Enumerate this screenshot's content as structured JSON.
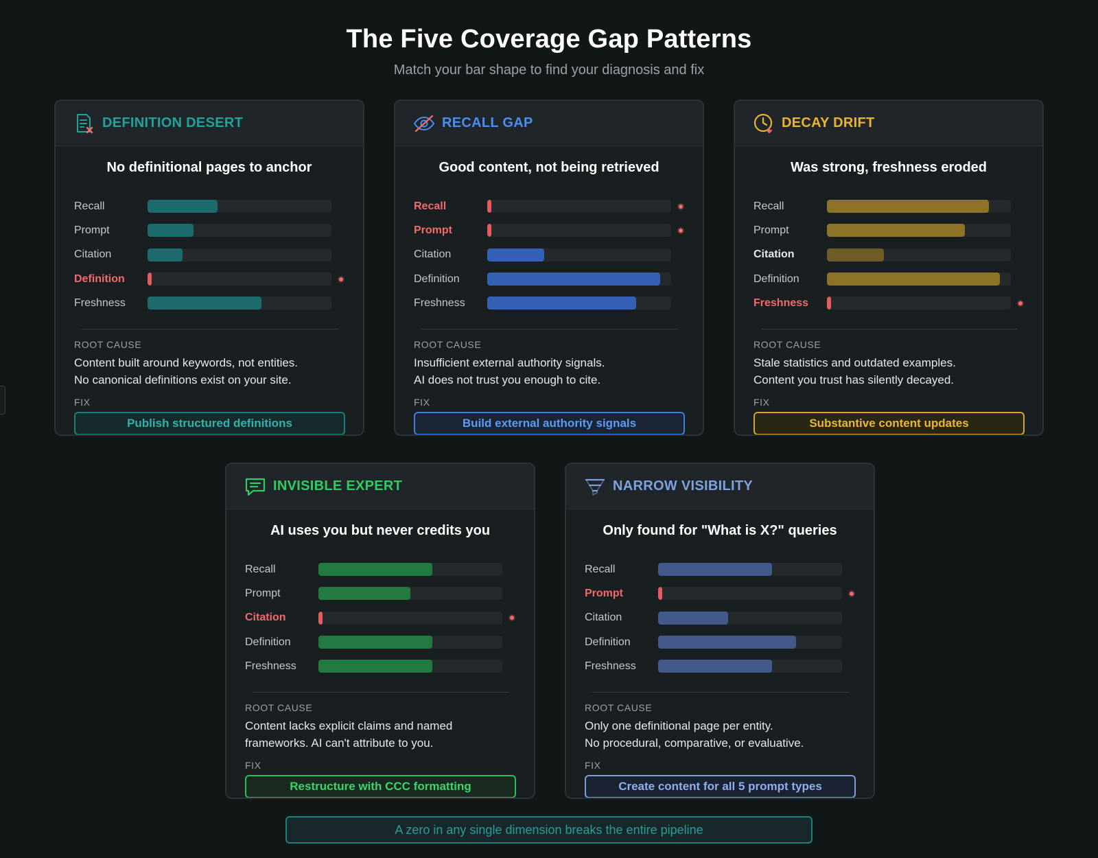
{
  "header": {
    "title": "The Five Coverage Gap Patterns",
    "subtitle": "Match your bar shape to find your diagnosis and fix"
  },
  "labels": {
    "root_cause": "ROOT CAUSE",
    "fix": "FIX"
  },
  "patterns": [
    {
      "title": "DEFINITION DESERT",
      "icon": "document-x-icon",
      "accent": "#1fa39c",
      "bar_color": "#1d6b6c",
      "headline": "No definitional pages to anchor",
      "bars": [
        {
          "label": "Recall",
          "value": 0.38,
          "zero": false
        },
        {
          "label": "Prompt",
          "value": 0.25,
          "zero": false
        },
        {
          "label": "Citation",
          "value": 0.19,
          "zero": false
        },
        {
          "label": "Definition",
          "value": 0.0,
          "zero": true
        },
        {
          "label": "Freshness",
          "value": 0.62,
          "zero": false
        }
      ],
      "root_cause": [
        "Content built around keywords, not entities.",
        "No canonical definitions exist on your site."
      ],
      "fix": "Publish structured definitions",
      "fix_bg": "#172a2b",
      "fix_border": "#1d7f7b",
      "fix_text": "#2fb3ab"
    },
    {
      "title": "RECALL GAP",
      "icon": "eye-slash-icon",
      "accent": "#4a8ff0",
      "bar_color": "#3460b5",
      "headline": "Good content, not being retrieved",
      "bars": [
        {
          "label": "Recall",
          "value": 0.0,
          "zero": true
        },
        {
          "label": "Prompt",
          "value": 0.0,
          "zero": true
        },
        {
          "label": "Citation",
          "value": 0.31,
          "zero": false
        },
        {
          "label": "Definition",
          "value": 0.94,
          "zero": false
        },
        {
          "label": "Freshness",
          "value": 0.81,
          "zero": false
        }
      ],
      "root_cause": [
        "Insufficient external authority signals.",
        "AI does not trust you enough to cite."
      ],
      "fix": "Build external authority signals",
      "fix_bg": "#1a2435",
      "fix_border": "#3f7fe0",
      "fix_text": "#5b9cf5"
    },
    {
      "title": "DECAY DRIFT",
      "icon": "clock-arrow-icon",
      "accent": "#e9b531",
      "bar_color": "#8e7227",
      "headline": "Was strong, freshness eroded",
      "bars": [
        {
          "label": "Recall",
          "value": 0.88,
          "zero": false
        },
        {
          "label": "Prompt",
          "value": 0.75,
          "zero": false
        },
        {
          "label": "Citation",
          "value": 0.31,
          "zero": false,
          "emphasis": true,
          "muted": true
        },
        {
          "label": "Definition",
          "value": 0.94,
          "zero": false
        },
        {
          "label": "Freshness",
          "value": 0.0,
          "zero": true
        }
      ],
      "root_cause": [
        "Stale statistics and outdated examples.",
        "Content you trust has silently decayed."
      ],
      "fix": "Substantive content updates",
      "fix_bg": "#2a2616",
      "fix_border": "#d4a52c",
      "fix_text": "#eab731"
    },
    {
      "title": "INVISIBLE EXPERT",
      "icon": "chat-bubble-icon",
      "accent": "#2ecc65",
      "bar_color": "#237a40",
      "headline": "AI uses you but never credits you",
      "bars": [
        {
          "label": "Recall",
          "value": 0.62,
          "zero": false
        },
        {
          "label": "Prompt",
          "value": 0.5,
          "zero": false
        },
        {
          "label": "Citation",
          "value": 0.0,
          "zero": true
        },
        {
          "label": "Definition",
          "value": 0.62,
          "zero": false
        },
        {
          "label": "Freshness",
          "value": 0.62,
          "zero": false
        }
      ],
      "root_cause": [
        "Content lacks explicit claims and named",
        "frameworks. AI can't attribute to you."
      ],
      "fix": "Restructure with CCC formatting",
      "fix_bg": "#172a1d",
      "fix_border": "#2abf5c",
      "fix_text": "#39d46d"
    },
    {
      "title": "NARROW VISIBILITY",
      "icon": "funnel-icon",
      "accent": "#7ea2df",
      "bar_color": "#42598a",
      "headline": "Only found for \"What is X?\" queries",
      "bars": [
        {
          "label": "Recall",
          "value": 0.62,
          "zero": false
        },
        {
          "label": "Prompt",
          "value": 0.0,
          "zero": true
        },
        {
          "label": "Citation",
          "value": 0.38,
          "zero": false
        },
        {
          "label": "Definition",
          "value": 0.75,
          "zero": false
        },
        {
          "label": "Freshness",
          "value": 0.62,
          "zero": false
        }
      ],
      "root_cause": [
        "Only one definitional page per entity.",
        "No procedural, comparative, or evaluative."
      ],
      "fix": "Create content for all 5 prompt types",
      "fix_bg": "#1b2231",
      "fix_border": "#7e9fdb",
      "fix_text": "#8fb0ee"
    }
  ],
  "footer": {
    "text": "A zero in any single dimension breaks the entire pipeline"
  }
}
